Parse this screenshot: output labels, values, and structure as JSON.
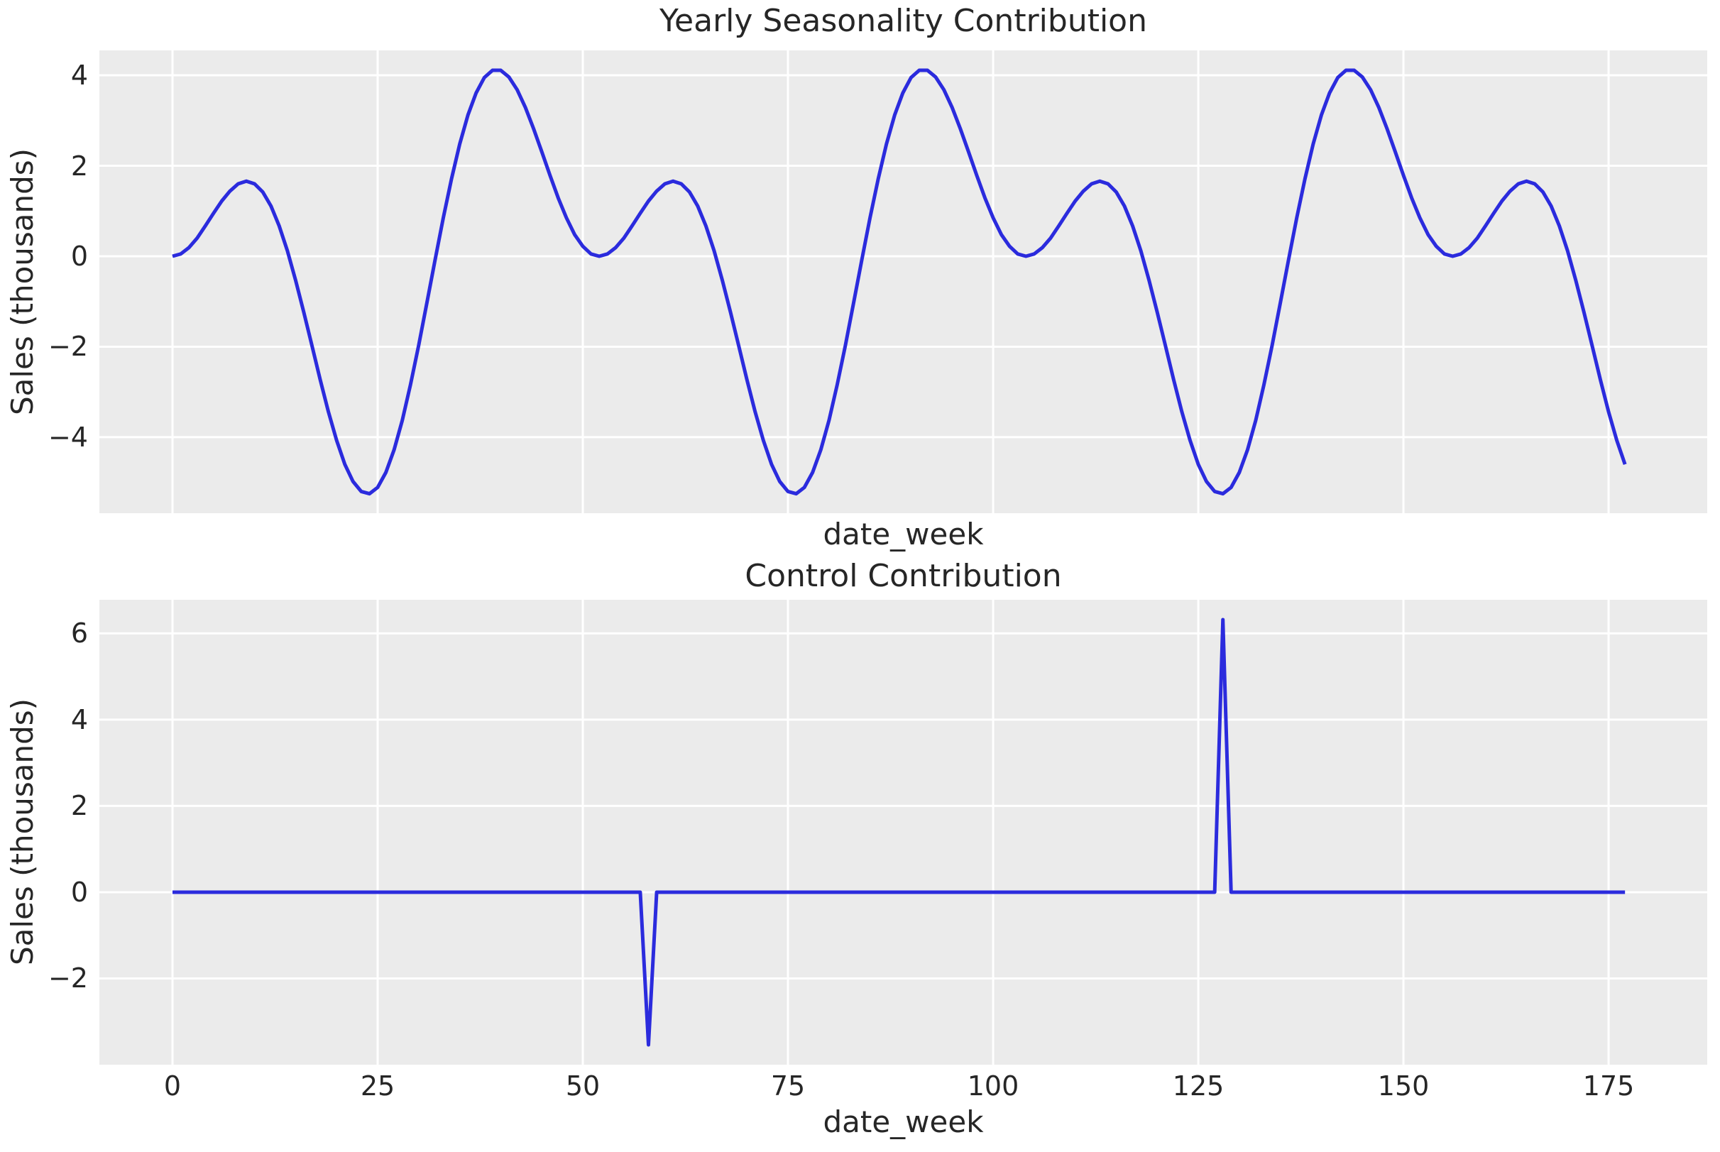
{
  "figure": {
    "background": "#ffffff",
    "plot_background": "#ebebeb",
    "grid_color": "#ffffff",
    "line_color": "#2b2bdd",
    "text_color": "#262626"
  },
  "chart_data": [
    {
      "type": "line",
      "title": "Yearly Seasonality Contribution",
      "xlabel": "date_week",
      "ylabel": "Sales (thousands)",
      "legend": false,
      "grid": true,
      "x_start": 0,
      "x_step": 1,
      "n_points": 178,
      "x_range": [
        0,
        177
      ],
      "xlim": [
        -8.91,
        187.02
      ],
      "ylim": [
        -5.68,
        4.55
      ],
      "xticks": [
        0,
        25,
        50,
        75,
        100,
        125,
        150,
        175
      ],
      "xtick_labels_shown": false,
      "yticks": [
        4,
        2,
        0,
        -2,
        -4
      ],
      "values": [
        0,
        0.05,
        0.19,
        0.4,
        0.67,
        0.95,
        1.22,
        1.44,
        1.6,
        1.66,
        1.6,
        1.42,
        1.11,
        0.67,
        0.12,
        -0.53,
        -1.24,
        -1.98,
        -2.73,
        -3.44,
        -4.07,
        -4.6,
        -4.98,
        -5.2,
        -5.25,
        -5.11,
        -4.78,
        -4.28,
        -3.63,
        -2.84,
        -1.97,
        -1.03,
        -0.08,
        0.85,
        1.71,
        2.48,
        3.12,
        3.61,
        3.95,
        4.11,
        4.11,
        3.96,
        3.68,
        3.29,
        2.82,
        2.31,
        1.79,
        1.29,
        0.85,
        0.48,
        0.22,
        0.05,
        0,
        0.05,
        0.19,
        0.4,
        0.67,
        0.95,
        1.22,
        1.44,
        1.6,
        1.66,
        1.6,
        1.42,
        1.11,
        0.67,
        0.12,
        -0.53,
        -1.24,
        -1.98,
        -2.73,
        -3.44,
        -4.07,
        -4.6,
        -4.98,
        -5.2,
        -5.25,
        -5.11,
        -4.78,
        -4.28,
        -3.63,
        -2.84,
        -1.97,
        -1.03,
        -0.08,
        0.85,
        1.71,
        2.48,
        3.12,
        3.61,
        3.95,
        4.11,
        4.11,
        3.96,
        3.68,
        3.29,
        2.82,
        2.31,
        1.79,
        1.29,
        0.85,
        0.48,
        0.22,
        0.05,
        0,
        0.05,
        0.19,
        0.4,
        0.67,
        0.95,
        1.22,
        1.44,
        1.6,
        1.66,
        1.6,
        1.42,
        1.11,
        0.67,
        0.12,
        -0.53,
        -1.24,
        -1.98,
        -2.73,
        -3.44,
        -4.07,
        -4.6,
        -4.98,
        -5.2,
        -5.25,
        -5.11,
        -4.78,
        -4.28,
        -3.63,
        -2.84,
        -1.97,
        -1.03,
        -0.08,
        0.85,
        1.71,
        2.48,
        3.12,
        3.61,
        3.95,
        4.11,
        4.11,
        3.96,
        3.68,
        3.29,
        2.82,
        2.31,
        1.79,
        1.29,
        0.85,
        0.48,
        0.22,
        0.05,
        0,
        0.05,
        0.19,
        0.4,
        0.67,
        0.95,
        1.22,
        1.44,
        1.6,
        1.66,
        1.6,
        1.42,
        1.11,
        0.67,
        0.12,
        -0.53,
        -1.24,
        -1.98,
        -2.73,
        -3.44,
        -4.07,
        -4.6
      ]
    },
    {
      "type": "line",
      "title": "Control Contribution",
      "xlabel": "date_week",
      "ylabel": "Sales (thousands)",
      "legend": false,
      "grid": true,
      "x_start": 0,
      "x_step": 1,
      "n_points": 178,
      "x_range": [
        0,
        177
      ],
      "xlim": [
        -8.91,
        187.02
      ],
      "ylim": [
        -4.0,
        6.78
      ],
      "xticks": [
        0,
        25,
        50,
        75,
        100,
        125,
        150,
        175
      ],
      "xtick_labels_shown": true,
      "yticks": [
        6,
        4,
        2,
        0,
        -2
      ],
      "spike_events": [
        {
          "x": 58,
          "value": -3.54
        },
        {
          "x": 128,
          "value": 6.32
        }
      ],
      "values": [
        0,
        0,
        0,
        0,
        0,
        0,
        0,
        0,
        0,
        0,
        0,
        0,
        0,
        0,
        0,
        0,
        0,
        0,
        0,
        0,
        0,
        0,
        0,
        0,
        0,
        0,
        0,
        0,
        0,
        0,
        0,
        0,
        0,
        0,
        0,
        0,
        0,
        0,
        0,
        0,
        0,
        0,
        0,
        0,
        0,
        0,
        0,
        0,
        0,
        0,
        0,
        0,
        0,
        0,
        0,
        0,
        0,
        0,
        -3.54,
        0,
        0,
        0,
        0,
        0,
        0,
        0,
        0,
        0,
        0,
        0,
        0,
        0,
        0,
        0,
        0,
        0,
        0,
        0,
        0,
        0,
        0,
        0,
        0,
        0,
        0,
        0,
        0,
        0,
        0,
        0,
        0,
        0,
        0,
        0,
        0,
        0,
        0,
        0,
        0,
        0,
        0,
        0,
        0,
        0,
        0,
        0,
        0,
        0,
        0,
        0,
        0,
        0,
        0,
        0,
        0,
        0,
        0,
        0,
        0,
        0,
        0,
        0,
        0,
        0,
        0,
        0,
        0,
        0,
        6.32,
        0,
        0,
        0,
        0,
        0,
        0,
        0,
        0,
        0,
        0,
        0,
        0,
        0,
        0,
        0,
        0,
        0,
        0,
        0,
        0,
        0,
        0,
        0,
        0,
        0,
        0,
        0,
        0,
        0,
        0,
        0,
        0,
        0,
        0,
        0,
        0,
        0,
        0,
        0,
        0,
        0,
        0,
        0,
        0,
        0,
        0,
        0,
        0,
        0
      ]
    }
  ]
}
